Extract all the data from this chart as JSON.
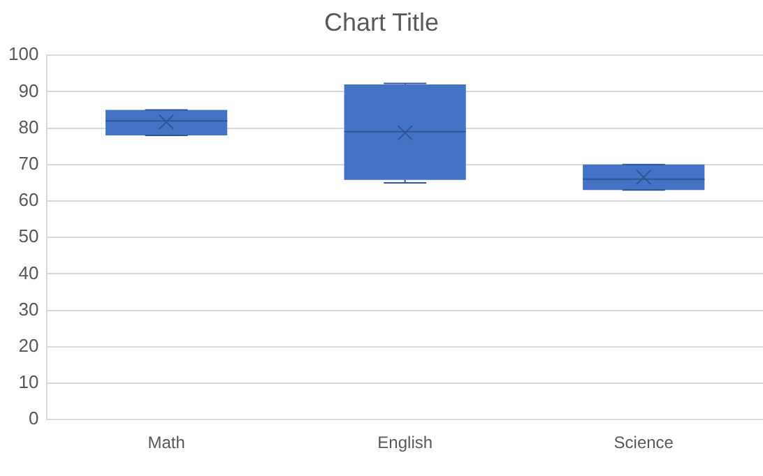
{
  "chart_data": {
    "type": "box",
    "title": "Chart Title",
    "categories": [
      "Math",
      "English",
      "Science"
    ],
    "boxes": [
      {
        "low": 78,
        "q1": 78,
        "median": 82,
        "q3": 85,
        "high": 85,
        "mean": 81.7
      },
      {
        "low": 65,
        "q1": 65.8,
        "median": 79,
        "q3": 92,
        "high": 92.3,
        "mean": 78.7
      },
      {
        "low": 63,
        "q1": 63,
        "median": 66,
        "q3": 70,
        "high": 70,
        "mean": 66.5
      }
    ],
    "color": "#4472c4",
    "ylim": [
      0,
      100
    ],
    "yticks": [
      0,
      10,
      20,
      30,
      40,
      50,
      60,
      70,
      80,
      90,
      100
    ],
    "grid": "y",
    "legend": false
  }
}
